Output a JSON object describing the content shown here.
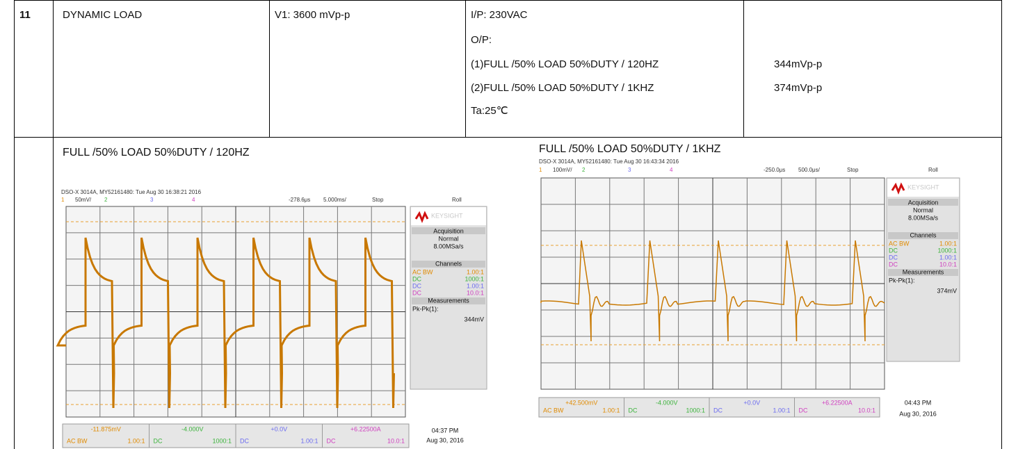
{
  "table": {
    "row_number": "11",
    "test": "DYNAMIC LOAD",
    "spec": "V1: 3600 mVp-p",
    "conditions": [
      "I/P: 230VAC",
      "O/P:",
      "(1)FULL /50% LOAD 50%DUTY / 120HZ",
      "(2)FULL /50% LOAD 50%DUTY / 1KHZ",
      "Ta:25℃"
    ],
    "results": [
      "344mVp-p",
      "374mVp-p"
    ]
  },
  "scopes": [
    {
      "caption": "FULL /50% LOAD 50%DUTY / 120HZ",
      "header": "DSO-X 3014A, MY52161480: Tue Aug 30 16:38:21 2016",
      "top": [
        "1",
        "50mV/",
        "2",
        "3",
        "4",
        "-278.6μs",
        "5.000ms/",
        "Stop",
        "Roll"
      ],
      "brand": "KEYSIGHT",
      "acquisition": [
        "Acquisition",
        "Normal",
        "8.00MSa/s"
      ],
      "channels_title": "Channels",
      "channels": [
        [
          "AC BW",
          "1.00:1"
        ],
        [
          "DC",
          "1000:1"
        ],
        [
          "DC",
          "1.00:1"
        ],
        [
          "DC",
          "10.0:1"
        ]
      ],
      "measurements": [
        "Measurements",
        "Pk-Pk(1):",
        "344mV"
      ],
      "bottom": [
        [
          "-11.875mV",
          "AC  BW",
          "1.00:1"
        ],
        [
          "-4.000V",
          "DC",
          "1000:1"
        ],
        [
          "+0.0V",
          "DC",
          "1.00:1"
        ],
        [
          "+6.22500A",
          "DC",
          "10.0:1"
        ]
      ],
      "time": [
        "04:37 PM",
        "Aug 30, 2016"
      ]
    },
    {
      "caption": "FULL /50% LOAD 50%DUTY / 1KHZ",
      "header": "DSO-X 3014A, MY52161480: Tue Aug 30 16:43:34 2016",
      "top": [
        "1",
        "100mV/",
        "2",
        "3",
        "4",
        "-250.0μs",
        "500.0μs/",
        "Stop",
        "Roll"
      ],
      "brand": "KEYSIGHT",
      "acquisition": [
        "Acquisition",
        "Normal",
        "8.00MSa/s"
      ],
      "channels_title": "Channels",
      "channels": [
        [
          "AC BW",
          "1.00:1"
        ],
        [
          "DC",
          "1000:1"
        ],
        [
          "DC",
          "1.00:1"
        ],
        [
          "DC",
          "10.0:1"
        ]
      ],
      "measurements": [
        "Measurements",
        "Pk-Pk(1):",
        "374mV"
      ],
      "bottom": [
        [
          "+42.500mV",
          "AC  BW",
          "1.00:1"
        ],
        [
          "-4.000V",
          "DC",
          "1000:1"
        ],
        [
          "+0.0V",
          "DC",
          "1.00:1"
        ],
        [
          "+6.22500A",
          "DC",
          "10.0:1"
        ]
      ],
      "time": [
        "04:43 PM",
        "Aug 30, 2016"
      ]
    }
  ]
}
